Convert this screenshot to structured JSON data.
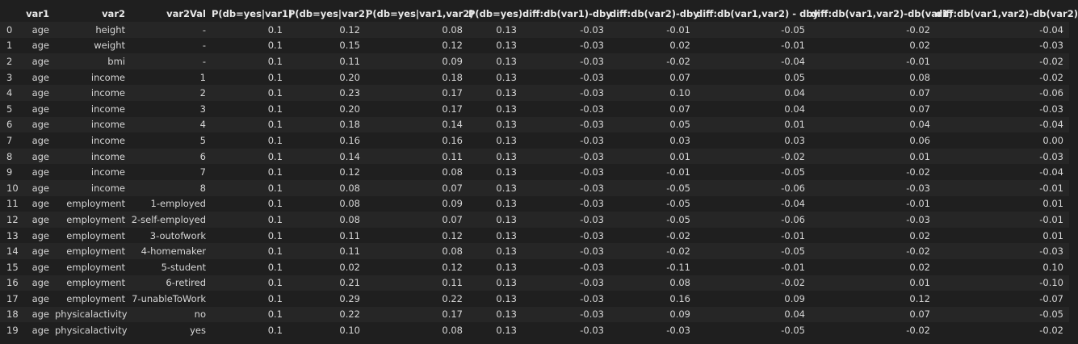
{
  "table": {
    "columns": [
      "",
      "var1",
      "var2",
      "var2Val",
      "P(db=yes|var1)",
      "P(db=yes|var2)",
      "P(db=yes|var1,var2)",
      "P(db=yes)",
      "diff:db(var1)-dby",
      "diff:db(var2)-dby",
      "diff:db(var1,var2) - dby",
      "diff:db(var1,var2)-db(var1)",
      "diff:db(var1,var2)-db(var2)"
    ],
    "rows": [
      [
        "0",
        "age",
        "height",
        "-",
        "0.1",
        "0.12",
        "0.08",
        "0.13",
        "-0.03",
        "-0.01",
        "-0.05",
        "-0.02",
        "-0.04"
      ],
      [
        "1",
        "age",
        "weight",
        "-",
        "0.1",
        "0.15",
        "0.12",
        "0.13",
        "-0.03",
        "0.02",
        "-0.01",
        "0.02",
        "-0.03"
      ],
      [
        "2",
        "age",
        "bmi",
        "-",
        "0.1",
        "0.11",
        "0.09",
        "0.13",
        "-0.03",
        "-0.02",
        "-0.04",
        "-0.01",
        "-0.02"
      ],
      [
        "3",
        "age",
        "income",
        "1",
        "0.1",
        "0.20",
        "0.18",
        "0.13",
        "-0.03",
        "0.07",
        "0.05",
        "0.08",
        "-0.02"
      ],
      [
        "4",
        "age",
        "income",
        "2",
        "0.1",
        "0.23",
        "0.17",
        "0.13",
        "-0.03",
        "0.10",
        "0.04",
        "0.07",
        "-0.06"
      ],
      [
        "5",
        "age",
        "income",
        "3",
        "0.1",
        "0.20",
        "0.17",
        "0.13",
        "-0.03",
        "0.07",
        "0.04",
        "0.07",
        "-0.03"
      ],
      [
        "6",
        "age",
        "income",
        "4",
        "0.1",
        "0.18",
        "0.14",
        "0.13",
        "-0.03",
        "0.05",
        "0.01",
        "0.04",
        "-0.04"
      ],
      [
        "7",
        "age",
        "income",
        "5",
        "0.1",
        "0.16",
        "0.16",
        "0.13",
        "-0.03",
        "0.03",
        "0.03",
        "0.06",
        "0.00"
      ],
      [
        "8",
        "age",
        "income",
        "6",
        "0.1",
        "0.14",
        "0.11",
        "0.13",
        "-0.03",
        "0.01",
        "-0.02",
        "0.01",
        "-0.03"
      ],
      [
        "9",
        "age",
        "income",
        "7",
        "0.1",
        "0.12",
        "0.08",
        "0.13",
        "-0.03",
        "-0.01",
        "-0.05",
        "-0.02",
        "-0.04"
      ],
      [
        "10",
        "age",
        "income",
        "8",
        "0.1",
        "0.08",
        "0.07",
        "0.13",
        "-0.03",
        "-0.05",
        "-0.06",
        "-0.03",
        "-0.01"
      ],
      [
        "11",
        "age",
        "employment",
        "1-employed",
        "0.1",
        "0.08",
        "0.09",
        "0.13",
        "-0.03",
        "-0.05",
        "-0.04",
        "-0.01",
        "0.01"
      ],
      [
        "12",
        "age",
        "employment",
        "2-self-employed",
        "0.1",
        "0.08",
        "0.07",
        "0.13",
        "-0.03",
        "-0.05",
        "-0.06",
        "-0.03",
        "-0.01"
      ],
      [
        "13",
        "age",
        "employment",
        "3-outofwork",
        "0.1",
        "0.11",
        "0.12",
        "0.13",
        "-0.03",
        "-0.02",
        "-0.01",
        "0.02",
        "0.01"
      ],
      [
        "14",
        "age",
        "employment",
        "4-homemaker",
        "0.1",
        "0.11",
        "0.08",
        "0.13",
        "-0.03",
        "-0.02",
        "-0.05",
        "-0.02",
        "-0.03"
      ],
      [
        "15",
        "age",
        "employment",
        "5-student",
        "0.1",
        "0.02",
        "0.12",
        "0.13",
        "-0.03",
        "-0.11",
        "-0.01",
        "0.02",
        "0.10"
      ],
      [
        "16",
        "age",
        "employment",
        "6-retired",
        "0.1",
        "0.21",
        "0.11",
        "0.13",
        "-0.03",
        "0.08",
        "-0.02",
        "0.01",
        "-0.10"
      ],
      [
        "17",
        "age",
        "employment",
        "7-unableToWork",
        "0.1",
        "0.29",
        "0.22",
        "0.13",
        "-0.03",
        "0.16",
        "0.09",
        "0.12",
        "-0.07"
      ],
      [
        "18",
        "age",
        "physicalactivity",
        "no",
        "0.1",
        "0.22",
        "0.17",
        "0.13",
        "-0.03",
        "0.09",
        "0.04",
        "0.07",
        "-0.05"
      ],
      [
        "19",
        "age",
        "physicalactivity",
        "yes",
        "0.1",
        "0.10",
        "0.08",
        "0.13",
        "-0.03",
        "-0.03",
        "-0.05",
        "-0.02",
        "-0.02"
      ]
    ]
  }
}
